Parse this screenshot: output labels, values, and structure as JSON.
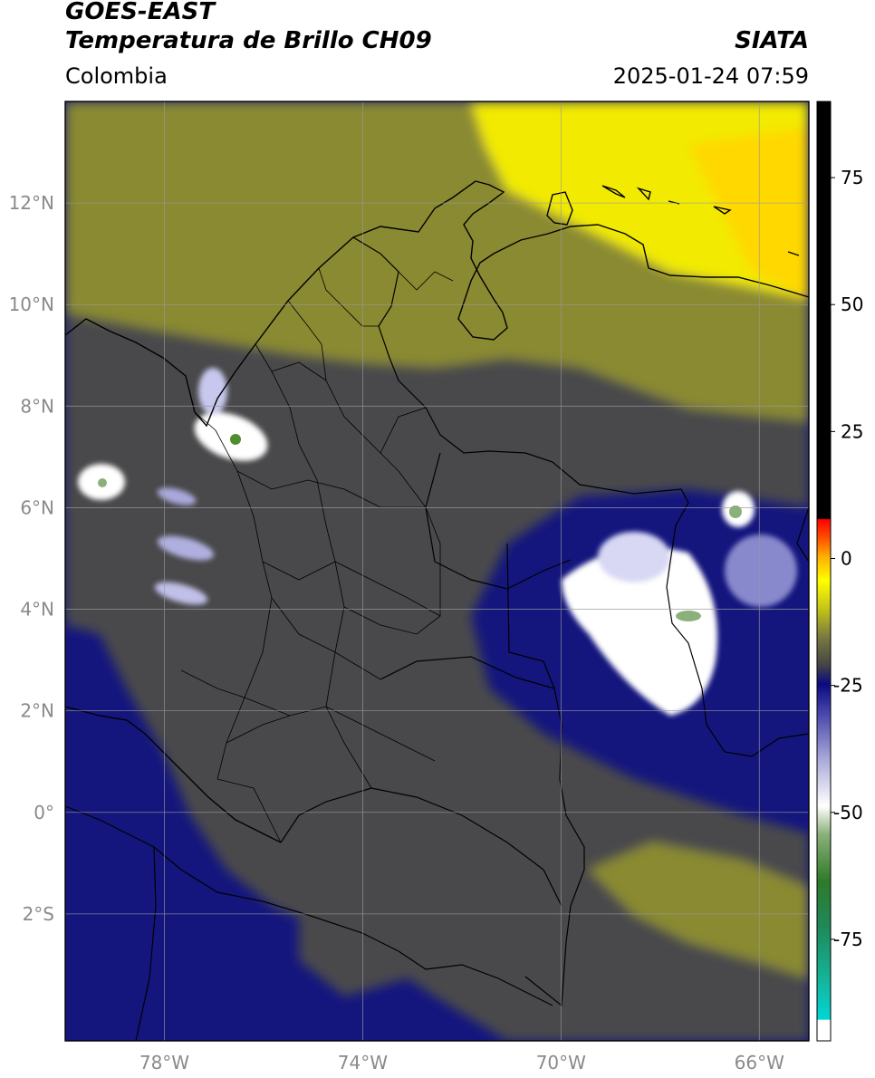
{
  "header": {
    "satellite": "GOES-EAST",
    "product": "Temperatura de Brillo CH09",
    "region": "Colombia",
    "organization": "SIATA",
    "timestamp": "2025-01-24 07:59"
  },
  "map": {
    "lon_range": [
      -80.0,
      -65.0
    ],
    "lat_range": [
      -4.5,
      14.0
    ],
    "lat_ticks": [
      {
        "value": 12,
        "label": "12°N"
      },
      {
        "value": 10,
        "label": "10°N"
      },
      {
        "value": 8,
        "label": "8°N"
      },
      {
        "value": 6,
        "label": "6°N"
      },
      {
        "value": 4,
        "label": "4°N"
      },
      {
        "value": 2,
        "label": "2°N"
      },
      {
        "value": 0,
        "label": "0°"
      },
      {
        "value": -2,
        "label": "2°S"
      }
    ],
    "lon_ticks": [
      {
        "value": -78,
        "label": "78°W"
      },
      {
        "value": -74,
        "label": "74°W"
      },
      {
        "value": -70,
        "label": "70°W"
      },
      {
        "value": -66,
        "label": "66°W"
      }
    ],
    "grid": true
  },
  "colorbar": {
    "range": [
      -95,
      90
    ],
    "ticks": [
      {
        "value": 75,
        "label": "75"
      },
      {
        "value": 50,
        "label": "50"
      },
      {
        "value": 25,
        "label": "25"
      },
      {
        "value": 0,
        "label": "0"
      },
      {
        "value": -25,
        "label": "-25"
      },
      {
        "value": -50,
        "label": "-50"
      },
      {
        "value": -75,
        "label": "-75"
      }
    ]
  },
  "colors": {
    "navy": "#14167e",
    "gray": "#4a4a4c",
    "olive": "#8a8a32",
    "yellow": "#f2ea00",
    "white": "#ffffff",
    "green": "#4e8e2e"
  }
}
